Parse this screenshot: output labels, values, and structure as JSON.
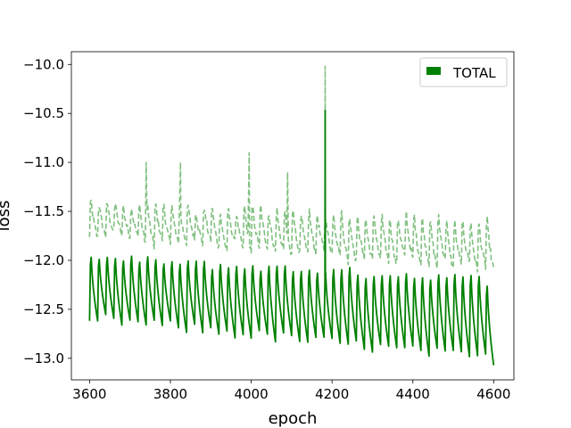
{
  "chart_data": {
    "type": "line",
    "xlabel": "epoch",
    "ylabel": "loss",
    "xlim": [
      3555,
      4650
    ],
    "ylim": [
      -13.22,
      -9.87
    ],
    "xticks": [
      3600,
      3800,
      4000,
      4200,
      4400,
      4600
    ],
    "yticks": [
      -10.0,
      -10.5,
      -11.0,
      -11.5,
      -12.0,
      -12.5,
      -13.0
    ],
    "xtick_labels": [
      "3600",
      "3800",
      "4000",
      "4200",
      "4400",
      "4600"
    ],
    "ytick_labels": [
      "−10.0",
      "−10.5",
      "−11.0",
      "−11.5",
      "−12.0",
      "−12.5",
      "−13.0"
    ],
    "grid": false,
    "legend": {
      "position": "top-right",
      "entries": [
        "TOTAL"
      ]
    },
    "series": [
      {
        "name": "TOTAL",
        "style": "solid",
        "color": "#008000",
        "description_of_pattern": "oscillating with period ~20 epochs; peaks about -11.8, troughs decline from about -12.6 to -13.0",
        "x_start": 3600,
        "x_end": 4600,
        "period": 20,
        "peak_start": -11.78,
        "peak_end": -11.95,
        "trough_start": -12.6,
        "trough_end": -13.02,
        "spike": {
          "x": 4183,
          "y": -10.47
        }
      },
      {
        "style": "dashed",
        "color": "#80c080",
        "x_start": 3600,
        "x_end": 4600,
        "period": 20,
        "peak_start": -11.3,
        "peak_end": -11.45,
        "trough_start": -11.75,
        "trough_end": -12.1,
        "spike": {
          "x": 4183,
          "y": -10.02
        },
        "occasional_peaks": [
          {
            "x": 3740,
            "y": -11.0
          },
          {
            "x": 3825,
            "y": -11.0
          },
          {
            "x": 3995,
            "y": -10.9
          },
          {
            "x": 4090,
            "y": -11.1
          }
        ]
      }
    ]
  }
}
